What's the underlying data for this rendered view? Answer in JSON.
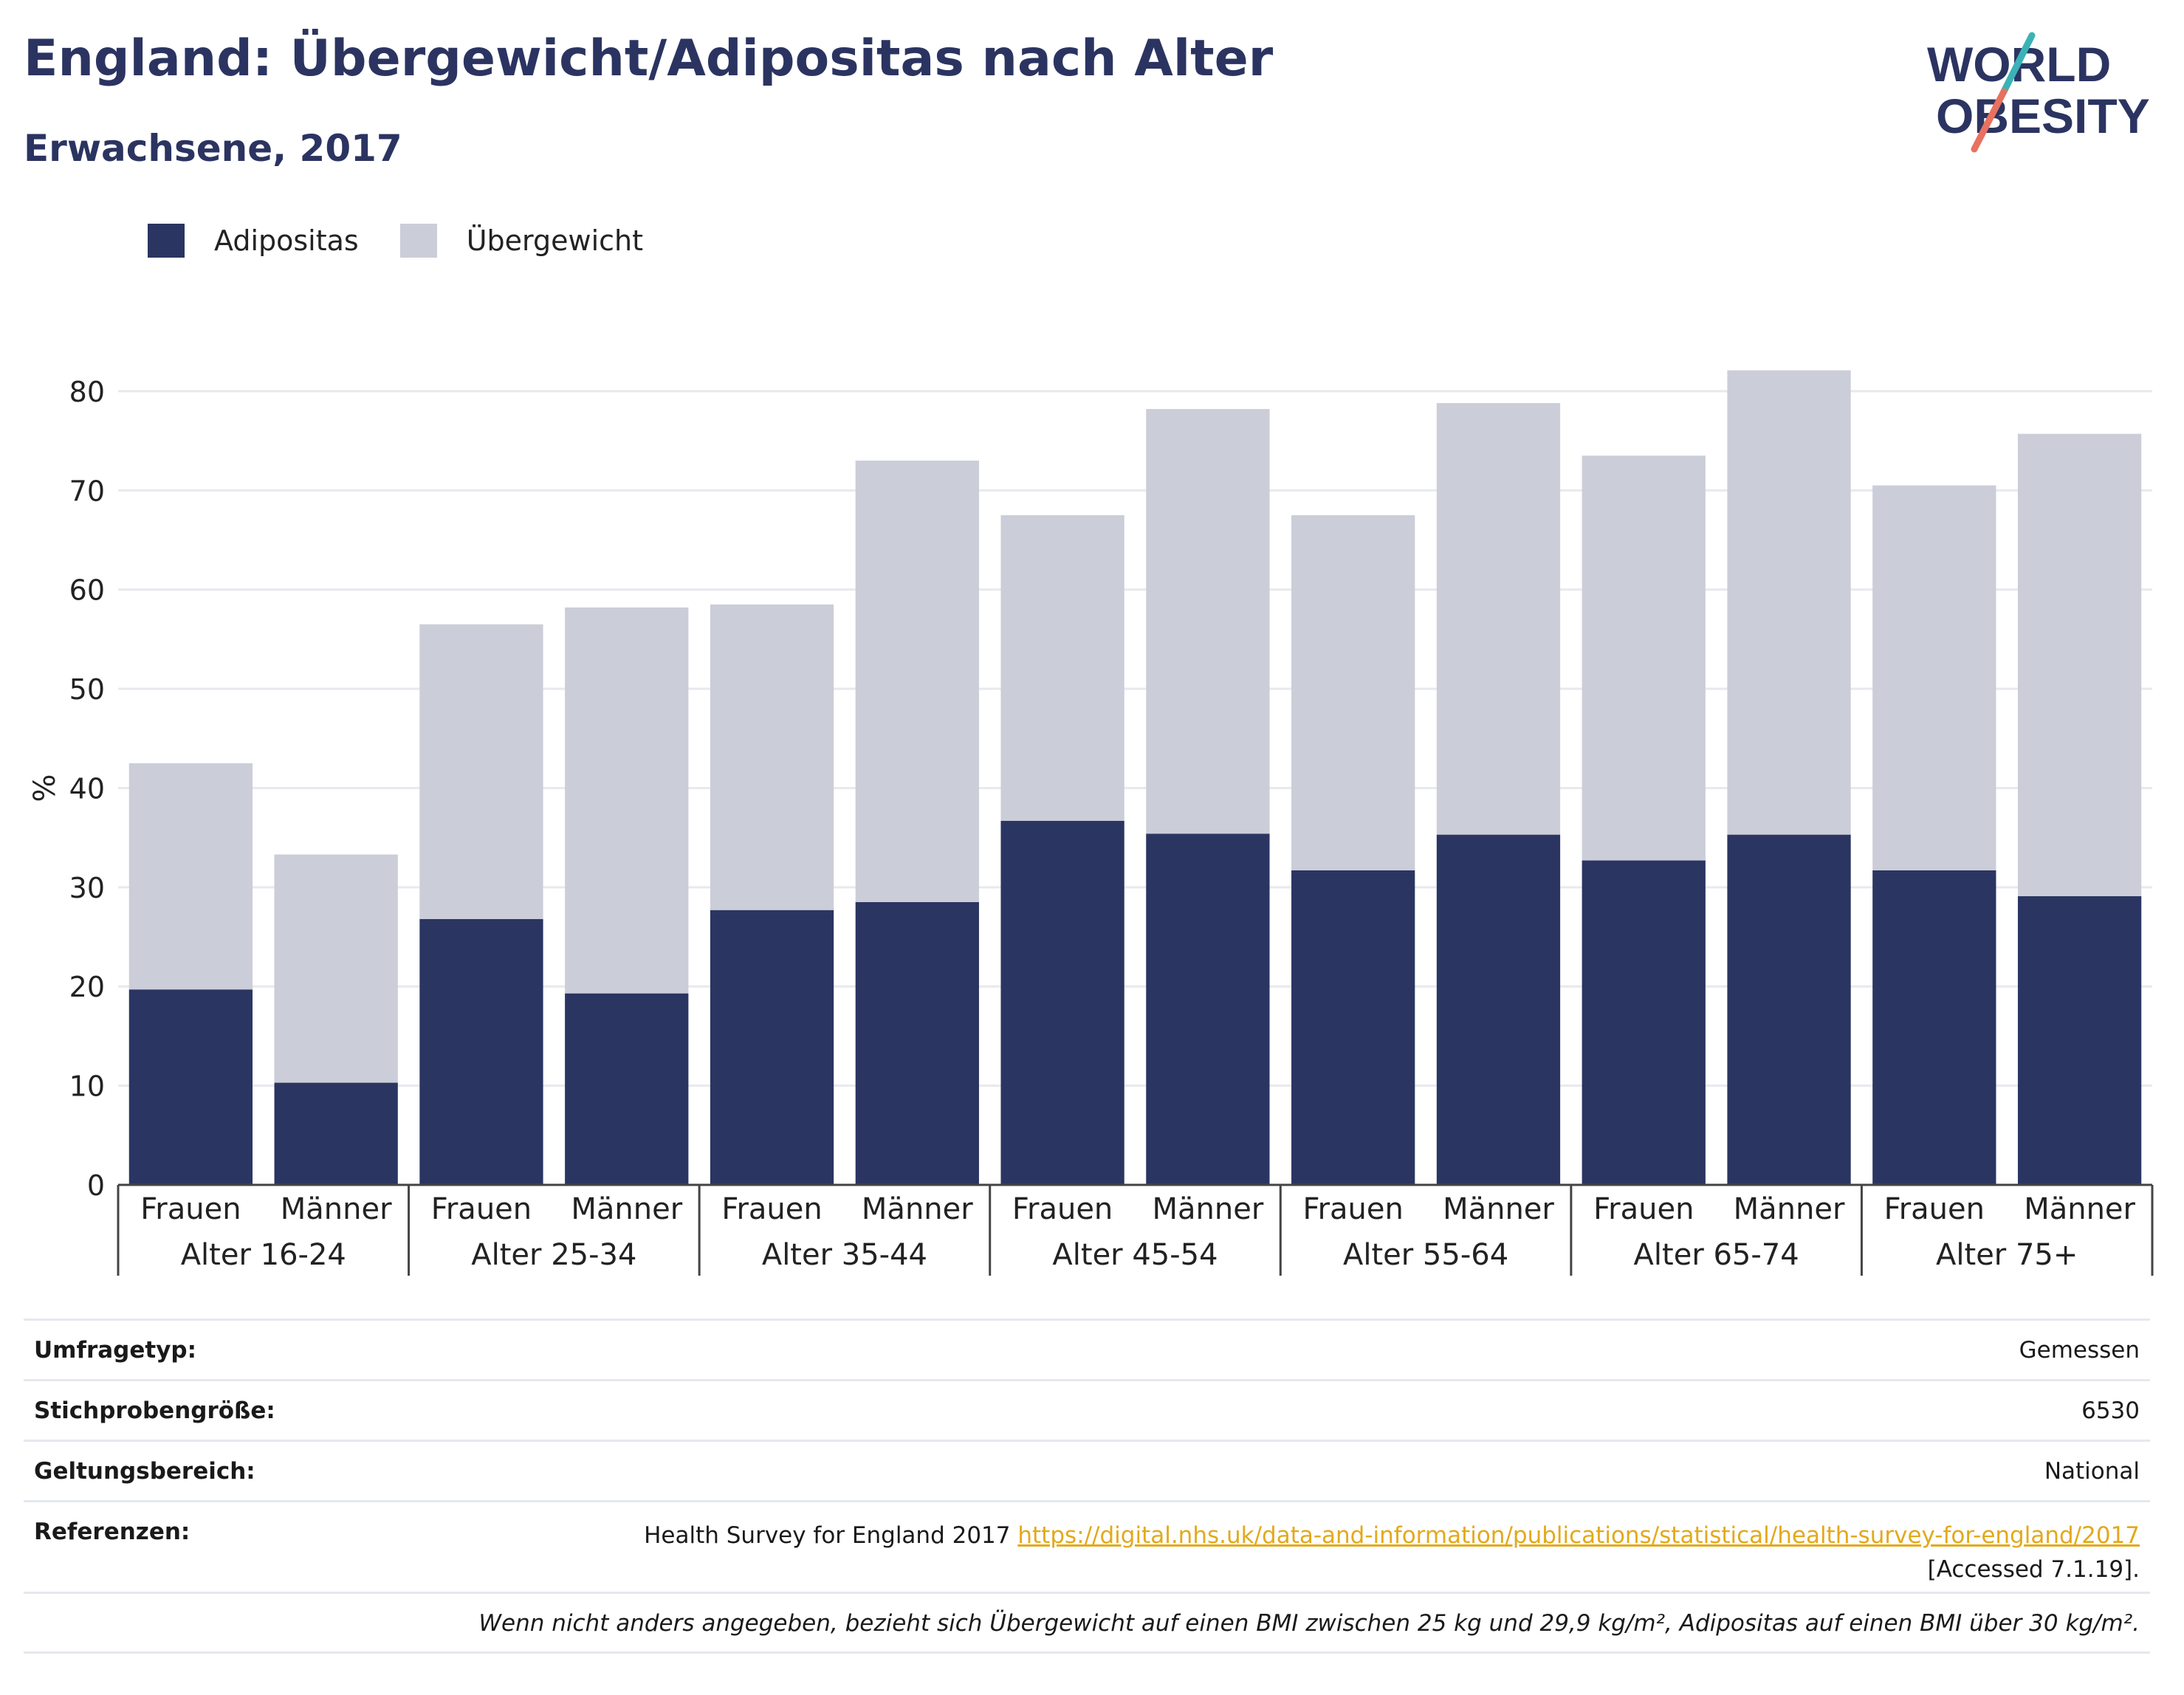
{
  "header": {
    "title": "England: Übergewicht/Adipositas nach Alter",
    "subtitle": "Erwachsene, 2017",
    "logo_line1": "WORLD",
    "logo_line2": "OBESITY"
  },
  "legend": [
    {
      "label": "Adipositas",
      "color": "#2b3562"
    },
    {
      "label": "Übergewicht",
      "color": "#cbcdd8"
    }
  ],
  "chart_data": {
    "type": "bar",
    "stacked": true,
    "categories": [
      "Frauen",
      "Männer",
      "Frauen",
      "Männer",
      "Frauen",
      "Männer",
      "Frauen",
      "Männer",
      "Frauen",
      "Männer",
      "Frauen",
      "Männer",
      "Frauen",
      "Männer"
    ],
    "groups": [
      "Alter 16-24",
      "Alter 25-34",
      "Alter 35-44",
      "Alter 45-54",
      "Alter 55-64",
      "Alter 65-74",
      "Alter 75+"
    ],
    "series": [
      {
        "name": "Adipositas",
        "color": "#2b3562",
        "values": [
          19.7,
          10.3,
          26.8,
          19.3,
          27.7,
          28.5,
          36.7,
          35.4,
          31.7,
          35.3,
          32.7,
          35.3,
          31.7,
          29.1
        ]
      },
      {
        "name": "Übergewicht",
        "color": "#cbcdd8",
        "values": [
          22.8,
          23.0,
          29.7,
          38.9,
          30.8,
          44.5,
          30.8,
          42.8,
          35.8,
          43.5,
          40.8,
          46.8,
          38.8,
          46.6
        ]
      }
    ],
    "ylabel": "%",
    "xlabel": "",
    "ylim": [
      0,
      82
    ],
    "yticks": [
      0,
      10,
      20,
      30,
      40,
      50,
      60,
      70,
      80
    ],
    "grid": true
  },
  "info": {
    "survey_label": "Umfragetyp:",
    "survey_value": "Gemessen",
    "sample_label": "Stichprobengröße:",
    "sample_value": "6530",
    "scope_label": "Geltungsbereich:",
    "scope_value": "National",
    "ref_label": "Referenzen:",
    "ref_text": "Health Survey for England 2017 ",
    "ref_link": "https://digital.nhs.uk/data-and-information/publications/statistical/health-survey-for-england/2017",
    "ref_accessed": "[Accessed 7.1.19].",
    "note": "Wenn nicht anders angegeben, bezieht sich Übergewicht auf einen BMI zwischen 25 kg und 29,9 kg/m², Adipositas auf einen BMI über 30 kg/m²."
  }
}
